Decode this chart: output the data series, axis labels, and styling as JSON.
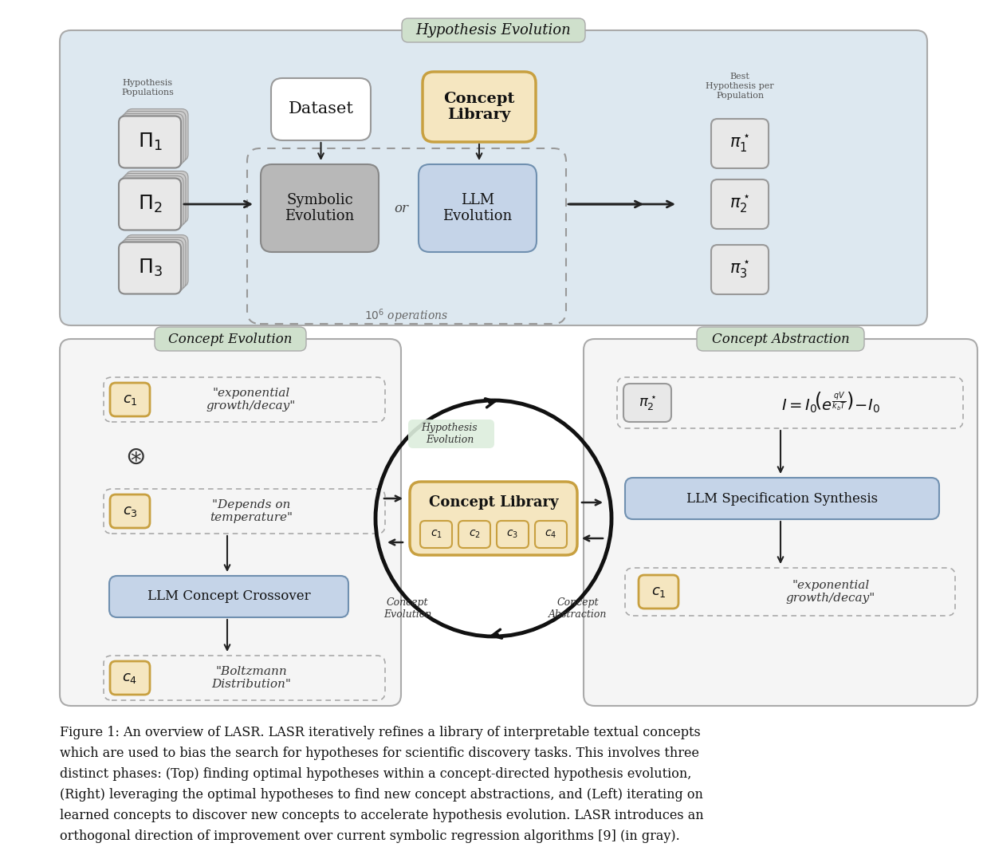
{
  "bg_color": "#ffffff",
  "top_panel_bg": "#dde8f0",
  "bottom_panel_bg": "#f5f5f5",
  "hyp_evo_label_bg": "#cfe0cc",
  "concept_evo_label_bg": "#cfe0cc",
  "concept_abs_label_bg": "#cfe0cc",
  "dataset_box_bg": "#ffffff",
  "concept_lib_box_bg": "#f5e6c0",
  "concept_lib_border": "#c8a040",
  "symbolic_evo_bg": "#b8b8b8",
  "symbolic_evo_border": "#888888",
  "llm_evo_bg": "#c5d4e8",
  "llm_evo_border": "#7090b0",
  "pi_box_bg": "#e8e8e8",
  "pi_box_border": "#999999",
  "concept_box_bg": "#f5e6c0",
  "concept_box_border": "#c8a040",
  "llm_crossover_bg": "#c5d4e8",
  "llm_crossover_border": "#7090b0",
  "llm_spec_bg": "#c5d4e8",
  "llm_spec_border": "#7090b0",
  "dashed_border": "#aaaaaa",
  "arrow_color": "#222222",
  "panel_border": "#aaaaaa",
  "caption_lines": [
    "Figure 1: An overview of LASR. LASR iteratively refines a library of interpretable textual concepts",
    "which are used to bias the search for hypotheses for scientific discovery tasks. This involves three",
    "distinct phases: (Top) finding optimal hypotheses within a concept-directed hypothesis evolution,",
    "(Right) leveraging the optimal hypotheses to find new concept abstractions, and (Left) iterating on",
    "learned concepts to discover new concepts to accelerate hypothesis evolution. LASR introduces an",
    "orthogonal direction of improvement over current symbolic regression algorithms [9] (in gray)."
  ]
}
